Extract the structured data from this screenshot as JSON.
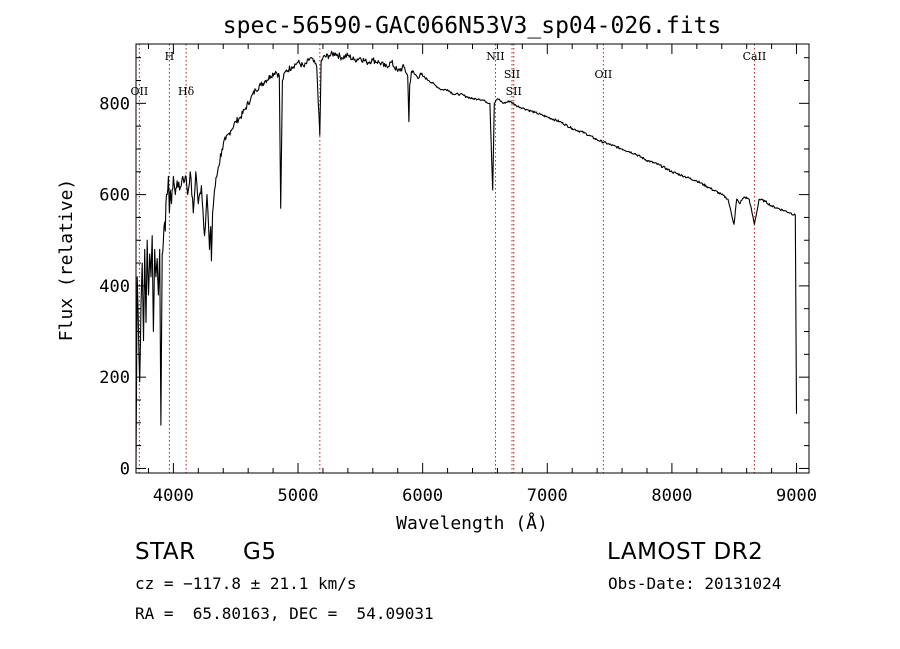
{
  "chart_data": {
    "type": "line",
    "title": "spec-56590-GAC066N53V3_sp04-026.fits",
    "xlabel": "Wavelength (Å)",
    "ylabel": "Flux (relative)",
    "xlim": [
      3700,
      9100
    ],
    "ylim": [
      -10,
      930
    ],
    "x_ticks": [
      4000,
      5000,
      6000,
      7000,
      8000,
      9000
    ],
    "y_ticks": [
      0,
      200,
      400,
      600,
      800
    ],
    "grid": false,
    "line_color": "#000000",
    "marker_color": "#b22222",
    "spectral_lines": [
      {
        "label": "OII",
        "x": 3727,
        "label_row": 2
      },
      {
        "label": "H",
        "x": 3968,
        "label_row": 0
      },
      {
        "label": "Hδ",
        "x": 4102,
        "label_row": 2
      },
      {
        "label": "",
        "x": 5175,
        "label_row": 0
      },
      {
        "label": "NII",
        "x": 6584,
        "label_row": 0
      },
      {
        "label": "SII",
        "x": 6717,
        "label_row": 1
      },
      {
        "label": "SII",
        "x": 6731,
        "label_row": 2
      },
      {
        "label": "OII",
        "x": 7450,
        "label_row": 1
      },
      {
        "label": "CaII",
        "x": 8662,
        "label_row": 0
      }
    ],
    "series": [
      {
        "x": [
          3700,
          3710,
          3720,
          3730,
          3740,
          3750,
          3760,
          3770,
          3780,
          3790,
          3800,
          3810,
          3820,
          3830,
          3840,
          3850,
          3860,
          3870,
          3880,
          3890,
          3900,
          3910,
          3920,
          3930,
          3935,
          3940,
          3950,
          3960,
          3968,
          3975,
          3985,
          4000,
          4015,
          4030,
          4050,
          4075,
          4090,
          4102,
          4115,
          4135,
          4160,
          4180,
          4200,
          4225,
          4250,
          4270,
          4290,
          4300,
          4305,
          4315,
          4330,
          4360,
          4390,
          4420,
          4460,
          4500,
          4540,
          4580,
          4620,
          4660,
          4700,
          4740,
          4780,
          4820,
          4850,
          4861,
          4875,
          4900,
          4950,
          5000,
          5050,
          5100,
          5150,
          5175,
          5185,
          5200,
          5250,
          5300,
          5350,
          5400,
          5450,
          5500,
          5550,
          5600,
          5650,
          5700,
          5750,
          5800,
          5850,
          5880,
          5890,
          5896,
          5910,
          5950,
          6000,
          6050,
          6100,
          6150,
          6200,
          6250,
          6300,
          6350,
          6400,
          6450,
          6500,
          6540,
          6562,
          6575,
          6600,
          6650,
          6700,
          6750,
          6800,
          6850,
          6900,
          6950,
          7000,
          7100,
          7200,
          7300,
          7400,
          7500,
          7600,
          7700,
          7800,
          7900,
          8000,
          8100,
          8200,
          8300,
          8400,
          8450,
          8498,
          8520,
          8542,
          8580,
          8620,
          8662,
          8700,
          8750,
          8800,
          8850,
          8900,
          8950,
          8990,
          9000
        ],
        "values": [
          0,
          420,
          300,
          190,
          360,
          450,
          280,
          480,
          320,
          500,
          380,
          470,
          420,
          510,
          300,
          480,
          420,
          460,
          380,
          480,
          95,
          470,
          500,
          540,
          520,
          580,
          600,
          640,
          560,
          610,
          580,
          640,
          600,
          630,
          610,
          640,
          630,
          640,
          600,
          650,
          560,
          650,
          580,
          620,
          510,
          600,
          480,
          530,
          455,
          560,
          610,
          660,
          700,
          720,
          740,
          760,
          770,
          790,
          810,
          830,
          840,
          850,
          860,
          870,
          860,
          570,
          850,
          870,
          880,
          890,
          880,
          900,
          880,
          730,
          890,
          900,
          905,
          910,
          900,
          905,
          895,
          900,
          890,
          895,
          890,
          880,
          890,
          870,
          880,
          860,
          760,
          840,
          870,
          860,
          860,
          850,
          840,
          830,
          830,
          820,
          820,
          815,
          810,
          810,
          805,
          800,
          610,
          800,
          810,
          800,
          805,
          795,
          790,
          785,
          780,
          775,
          770,
          760,
          745,
          735,
          720,
          710,
          700,
          690,
          675,
          665,
          650,
          640,
          630,
          615,
          600,
          590,
          535,
          590,
          580,
          595,
          590,
          535,
          590,
          585,
          575,
          570,
          565,
          560,
          555,
          120
        ]
      }
    ]
  },
  "info": {
    "object_class": "STAR",
    "subclass": "G5",
    "survey": "LAMOST DR2",
    "redshift": "cz = −117.8 ± 21.1 km/s",
    "obs_date": "Obs-Date: 20131024",
    "coords": "RA =  65.80163, DEC =  54.09031"
  }
}
